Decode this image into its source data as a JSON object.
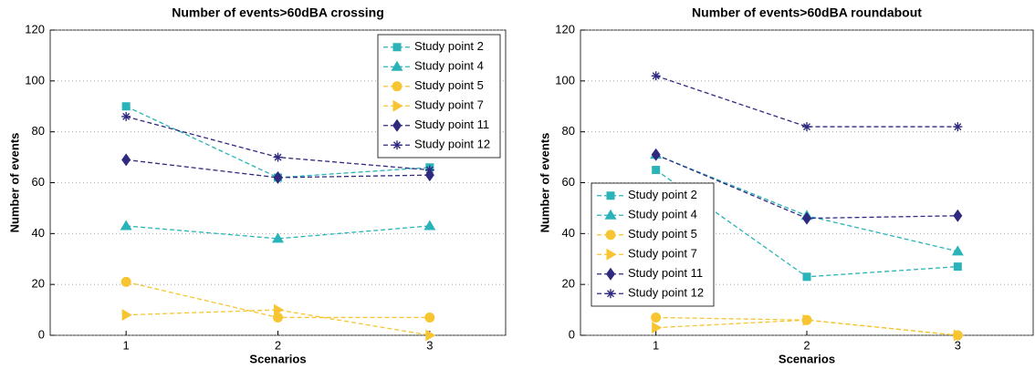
{
  "chart_data": [
    {
      "type": "line",
      "title": "Number of events>60dBA crossing",
      "x_label": "Scenarios",
      "y_label": "Number of events",
      "x": [
        1,
        2,
        3
      ],
      "xlim": [
        0.5,
        3.5
      ],
      "xticks": [
        1,
        2,
        3
      ],
      "ylim": [
        0,
        120
      ],
      "yticks": [
        0,
        20,
        40,
        60,
        80,
        100,
        120
      ],
      "grid": true,
      "legend": "upper right",
      "series": [
        {
          "name": "Study point 2",
          "color": "#2ab3b8",
          "marker": "square",
          "values": [
            90,
            62,
            66
          ]
        },
        {
          "name": "Study point 4",
          "color": "#2ab3b8",
          "marker": "triangle-up",
          "values": [
            43,
            38,
            43
          ]
        },
        {
          "name": "Study point 5",
          "color": "#f7c531",
          "marker": "circle",
          "values": [
            21,
            7,
            7
          ]
        },
        {
          "name": "Study point 7",
          "color": "#f7c531",
          "marker": "triangle-right",
          "values": [
            8,
            10,
            0
          ]
        },
        {
          "name": "Study point 11",
          "color": "#2f2a7f",
          "marker": "diamond",
          "values": [
            69,
            62,
            63
          ]
        },
        {
          "name": "Study point 12",
          "color": "#2f2a7f",
          "marker": "asterisk",
          "values": [
            86,
            70,
            65
          ]
        }
      ]
    },
    {
      "type": "line",
      "title": "Number of events>60dBA roundabout",
      "x_label": "Scenarios",
      "y_label": "Number of events",
      "x": [
        1,
        2,
        3
      ],
      "xlim": [
        0.5,
        3.5
      ],
      "xticks": [
        1,
        2,
        3
      ],
      "ylim": [
        0,
        120
      ],
      "yticks": [
        0,
        20,
        40,
        60,
        80,
        100,
        120
      ],
      "grid": true,
      "legend": "lower left",
      "series": [
        {
          "name": "Study point 2",
          "color": "#2ab3b8",
          "marker": "square",
          "values": [
            65,
            23,
            27
          ]
        },
        {
          "name": "Study point 4",
          "color": "#2ab3b8",
          "marker": "triangle-up",
          "values": [
            71,
            47,
            33
          ]
        },
        {
          "name": "Study point 5",
          "color": "#f7c531",
          "marker": "circle",
          "values": [
            7,
            6,
            0
          ]
        },
        {
          "name": "Study point 7",
          "color": "#f7c531",
          "marker": "triangle-right",
          "values": [
            3,
            6,
            0
          ]
        },
        {
          "name": "Study point 11",
          "color": "#2f2a7f",
          "marker": "diamond",
          "values": [
            71,
            46,
            47
          ]
        },
        {
          "name": "Study point 12",
          "color": "#2f2a7f",
          "marker": "asterisk",
          "values": [
            102,
            82,
            82
          ]
        }
      ]
    }
  ]
}
